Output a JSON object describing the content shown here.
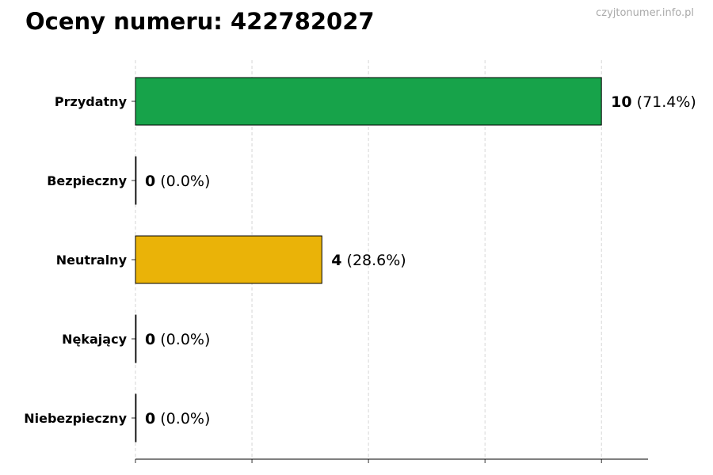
{
  "page": {
    "title": "Oceny numeru: 422782027",
    "watermark": "czyjtonumer.info.pl"
  },
  "chart_data": {
    "type": "bar",
    "orientation": "horizontal",
    "title": "Oceny numeru: 422782027",
    "xlabel": "",
    "ylabel": "",
    "categories": [
      "Przydatny",
      "Bezpieczny",
      "Neutralny",
      "Nękający",
      "Niebezpieczny"
    ],
    "values": [
      10,
      0,
      4,
      0,
      0
    ],
    "labels": [
      "(71.4%)",
      "(0.0%)",
      "(28.6%)",
      "(0.0%)",
      "(0.0%)"
    ],
    "colors": [
      "#17a34a",
      "#dc2626",
      "#eab308",
      "#ea580c",
      "#b91c1c"
    ],
    "xlim": [
      0,
      11
    ],
    "grid": "x",
    "legend": "none"
  }
}
